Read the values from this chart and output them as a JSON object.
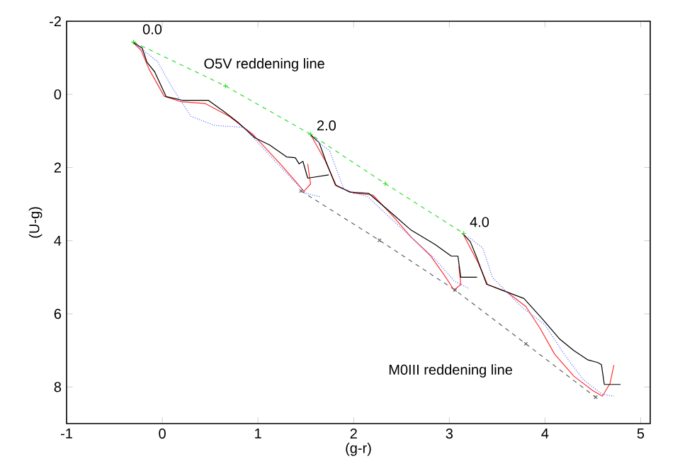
{
  "chart_data": {
    "type": "line",
    "xlabel": "(g-r)",
    "ylabel": "(U-g)",
    "xlim": [
      -1,
      5.1
    ],
    "ylim": [
      9,
      -2
    ],
    "xticks": [
      -1,
      0,
      1,
      2,
      3,
      4,
      5
    ],
    "yticks": [
      -2,
      0,
      2,
      4,
      6,
      8
    ],
    "grid": false,
    "series": [
      {
        "color": "#33dd33",
        "line_style": "dashed",
        "marker": "plus",
        "x": [
          -0.3,
          0.66,
          1.55,
          2.33,
          3.15
        ],
        "values": [
          -1.43,
          -0.23,
          1.09,
          2.44,
          3.8
        ]
      },
      {
        "color": "#606060",
        "line_style": "dashed",
        "marker": "cross",
        "x": [
          1.45,
          2.27,
          3.06,
          3.8,
          4.53
        ],
        "values": [
          2.64,
          3.99,
          5.35,
          6.82,
          8.28
        ]
      },
      {
        "color": "#6070ff",
        "line_style": "dotted",
        "marker": "none",
        "x": [
          -0.27,
          -0.05,
          0.1,
          0.3,
          0.55,
          0.85,
          1.1,
          1.35,
          1.5,
          1.65,
          null,
          1.58,
          1.75,
          1.9,
          2.15,
          2.35,
          2.6,
          2.85,
          3.05,
          3.2,
          null,
          3.2,
          3.35,
          3.45,
          3.75,
          4.0,
          4.2,
          4.4,
          4.6,
          4.72
        ],
        "values": [
          -1.35,
          -0.9,
          -0.2,
          0.6,
          0.85,
          0.9,
          1.6,
          2.3,
          2.7,
          2.8,
          null,
          1.2,
          1.55,
          2.6,
          2.8,
          3.3,
          3.9,
          4.5,
          5.1,
          5.3,
          null,
          3.9,
          4.2,
          5.0,
          5.8,
          6.3,
          7.1,
          7.8,
          8.2,
          8.25
        ]
      },
      {
        "color": "#ff3030",
        "line_style": "solid",
        "marker": "none",
        "x": [
          -0.31,
          -0.22,
          -0.14,
          0.02,
          0.2,
          0.45,
          0.7,
          0.95,
          1.25,
          1.4,
          1.48,
          1.55,
          1.52,
          null,
          1.55,
          1.7,
          1.82,
          2.0,
          2.2,
          2.4,
          2.6,
          2.8,
          2.95,
          3.05,
          3.12,
          3.1,
          null,
          3.14,
          3.3,
          3.4,
          3.6,
          3.8,
          3.95,
          4.1,
          4.3,
          4.5,
          4.6,
          4.68,
          4.72
        ],
        "values": [
          -1.43,
          -1.2,
          -0.7,
          0.05,
          0.2,
          0.25,
          0.6,
          1.1,
          1.95,
          2.4,
          2.65,
          2.45,
          1.9,
          null,
          1.1,
          1.8,
          2.5,
          2.7,
          2.75,
          3.3,
          3.9,
          4.4,
          4.95,
          5.35,
          5.2,
          4.7,
          null,
          3.8,
          4.6,
          5.2,
          5.4,
          5.8,
          6.4,
          7.1,
          7.7,
          8.1,
          8.25,
          7.9,
          7.4
        ]
      },
      {
        "color": "#000000",
        "line_style": "solid",
        "marker": "none",
        "x": [
          -0.31,
          -0.21,
          -0.16,
          -0.08,
          0.04,
          0.21,
          0.48,
          0.65,
          0.78,
          0.97,
          1.12,
          1.3,
          1.39,
          1.43,
          1.47,
          1.52,
          1.74,
          null,
          1.55,
          1.64,
          1.71,
          1.81,
          1.96,
          2.16,
          2.43,
          2.6,
          2.85,
          3.02,
          3.09,
          3.12,
          3.29,
          null,
          3.14,
          3.22,
          3.29,
          3.39,
          3.59,
          3.78,
          3.98,
          4.15,
          4.3,
          4.45,
          4.55,
          4.59,
          4.62,
          4.79
        ],
        "values": [
          -1.43,
          -1.27,
          -0.88,
          -0.62,
          0.06,
          0.16,
          0.16,
          0.48,
          0.74,
          1.19,
          1.38,
          1.71,
          1.73,
          1.9,
          1.83,
          2.29,
          2.2,
          null,
          1.1,
          1.32,
          1.83,
          2.48,
          2.67,
          2.71,
          3.32,
          3.71,
          4.1,
          4.42,
          4.42,
          5.0,
          5.0,
          null,
          3.8,
          4.03,
          4.48,
          5.19,
          5.39,
          5.58,
          6.16,
          6.68,
          7.0,
          7.26,
          7.33,
          7.39,
          7.93,
          7.93
        ]
      }
    ],
    "annotations": [
      "0.0",
      "2.0",
      "4.0",
      "O5V reddening line",
      "M0III reddening line"
    ]
  }
}
